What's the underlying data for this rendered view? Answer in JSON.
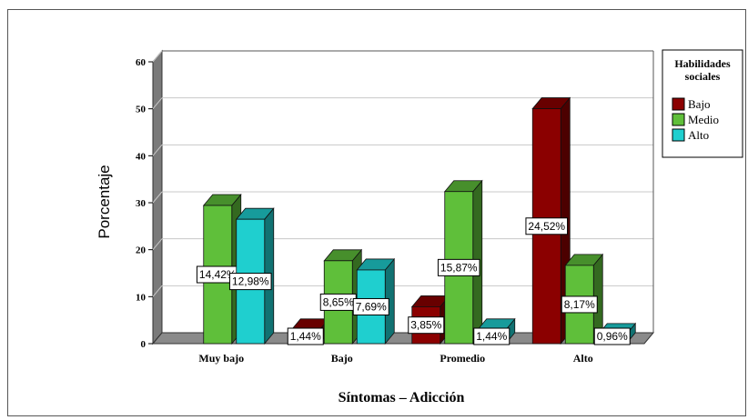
{
  "chart_data": {
    "type": "bar",
    "title": "",
    "xlabel": "Síntomas – Adicción",
    "ylabel": "Porcentaje",
    "ylim": [
      0,
      60
    ],
    "yticks": [
      0,
      10,
      20,
      30,
      40,
      50,
      60
    ],
    "categories": [
      "Muy bajo",
      "Bajo",
      "Promedio",
      "Alto"
    ],
    "legend": {
      "title": "Habilidades sociales",
      "title_lines": [
        "Habilidades",
        "sociales"
      ],
      "position": "right"
    },
    "grid": true,
    "series": [
      {
        "name": "Bajo",
        "color": "#8b0000",
        "values": [
          0,
          1.44,
          3.85,
          24.52
        ],
        "labels": [
          "",
          "1,44%",
          "3,85%",
          "24,52%"
        ]
      },
      {
        "name": "Medio",
        "color": "#5fbf3a",
        "values": [
          14.42,
          8.65,
          15.87,
          8.17
        ],
        "labels": [
          "14,42%",
          "8,65%",
          "15,87%",
          "8,17%"
        ]
      },
      {
        "name": "Alto",
        "color": "#1fcfcf",
        "values": [
          12.98,
          7.69,
          1.44,
          0.96
        ],
        "labels": [
          "12,98%",
          "7,69%",
          "1,44%",
          "0,96%"
        ]
      }
    ],
    "value_scale": 2.04
  }
}
